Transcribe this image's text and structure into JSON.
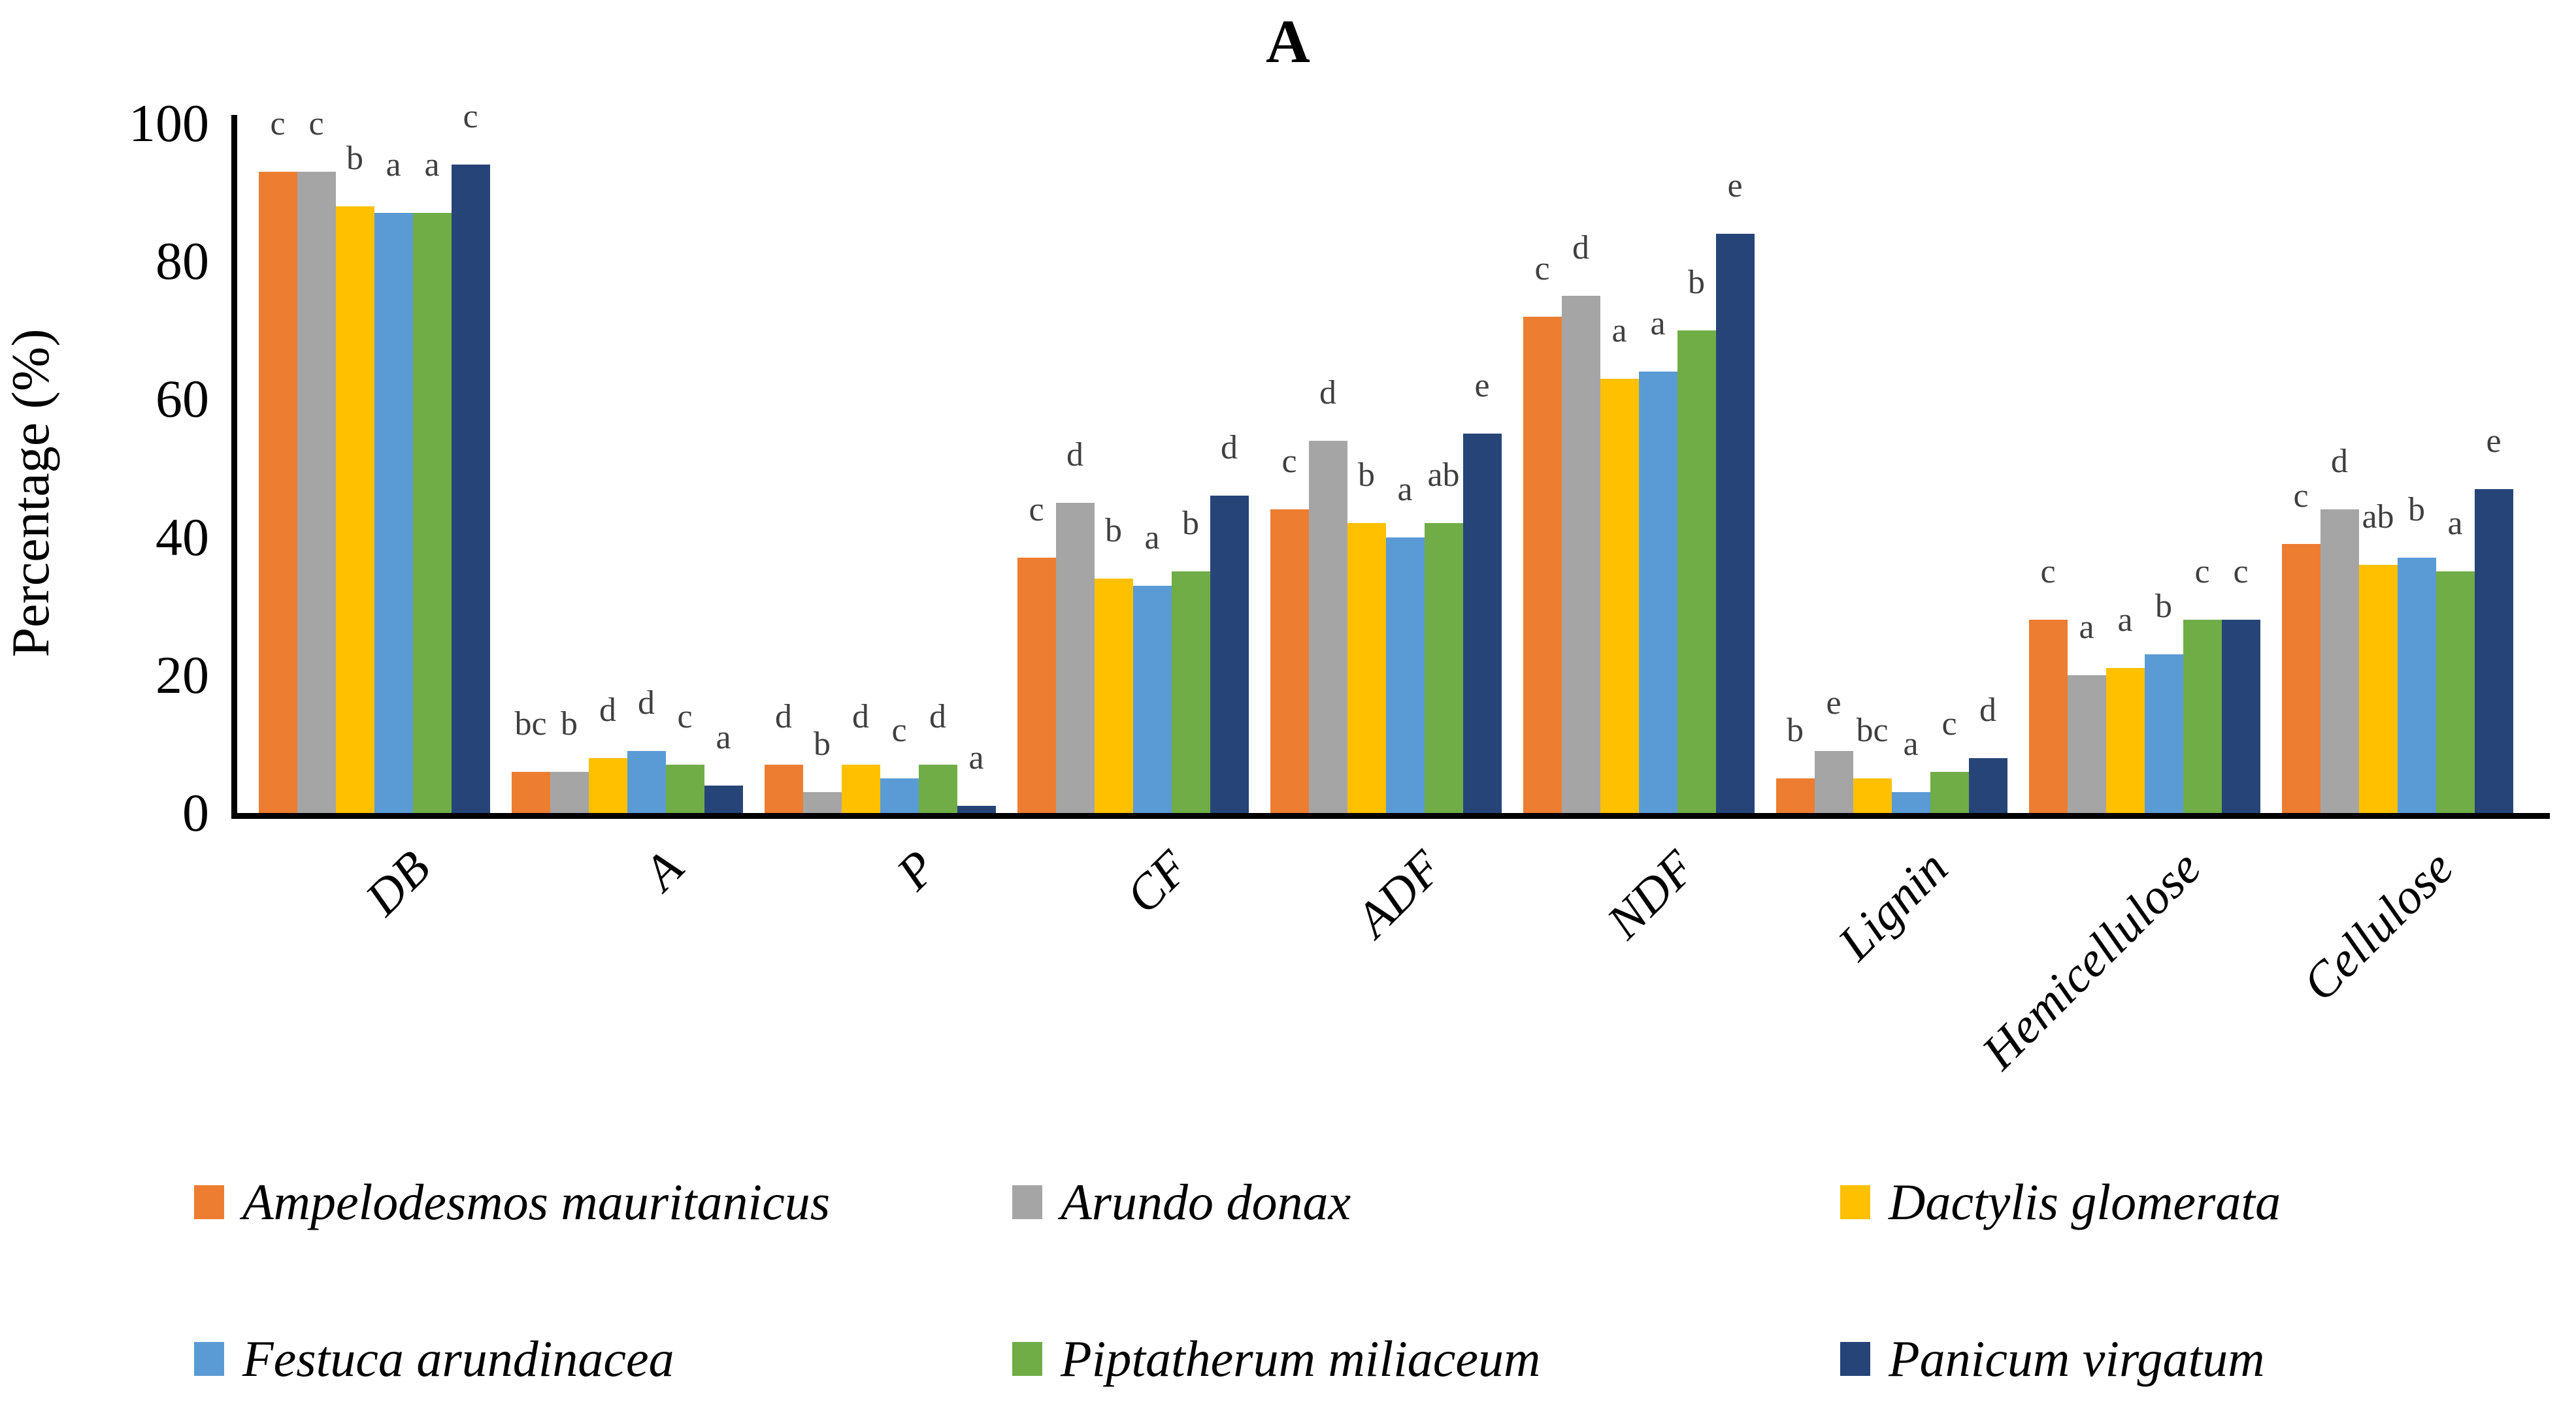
{
  "title": "A",
  "chart_data": {
    "type": "bar",
    "title": "A",
    "xlabel": "",
    "ylabel": "Percentage (%)",
    "ylim": [
      0,
      100
    ],
    "yticks": [
      0,
      20,
      40,
      60,
      80,
      100
    ],
    "grid": false,
    "legend_position": "bottom",
    "categories": [
      "DB",
      "A",
      "P",
      "CF",
      "ADF",
      "NDF",
      "Lignin",
      "Hemicellulose",
      "Cellulose"
    ],
    "series": [
      {
        "name": "Ampelodesmos mauritanicus",
        "color": "#ED7D31",
        "values": [
          93,
          6,
          7,
          37,
          44,
          72,
          5,
          28,
          39
        ],
        "sig_letters": [
          "c",
          "bc",
          "d",
          "c",
          "c",
          "c",
          "b",
          "c",
          "c"
        ]
      },
      {
        "name": "Arundo donax",
        "color": "#A5A5A5",
        "values": [
          93,
          6,
          3,
          45,
          54,
          75,
          9,
          20,
          44
        ],
        "sig_letters": [
          "c",
          "b",
          "b",
          "d",
          "d",
          "d",
          "e",
          "a",
          "d"
        ]
      },
      {
        "name": "Dactylis glomerata",
        "color": "#FFC000",
        "values": [
          88,
          8,
          7,
          34,
          42,
          63,
          5,
          21,
          36
        ],
        "sig_letters": [
          "b",
          "d",
          "d",
          "b",
          "b",
          "a",
          "bc",
          "a",
          "ab"
        ]
      },
      {
        "name": "Festuca arundinacea",
        "color": "#5B9BD5",
        "values": [
          87,
          9,
          5,
          33,
          40,
          64,
          3,
          23,
          37
        ],
        "sig_letters": [
          "a",
          "d",
          "c",
          "a",
          "a",
          "a",
          "a",
          "b",
          "b"
        ]
      },
      {
        "name": "Piptatherum miliaceum",
        "color": "#70AD47",
        "values": [
          87,
          7,
          7,
          35,
          42,
          70,
          6,
          28,
          35
        ],
        "sig_letters": [
          "a",
          "c",
          "d",
          "b",
          "ab",
          "b",
          "c",
          "c",
          "a"
        ]
      },
      {
        "name": "Panicum virgatum",
        "color": "#264478",
        "values": [
          94,
          4,
          1,
          46,
          55,
          84,
          8,
          28,
          47
        ],
        "sig_letters": [
          "c",
          "a",
          "a",
          "d",
          "e",
          "e",
          "d",
          "c",
          "e"
        ]
      }
    ]
  }
}
